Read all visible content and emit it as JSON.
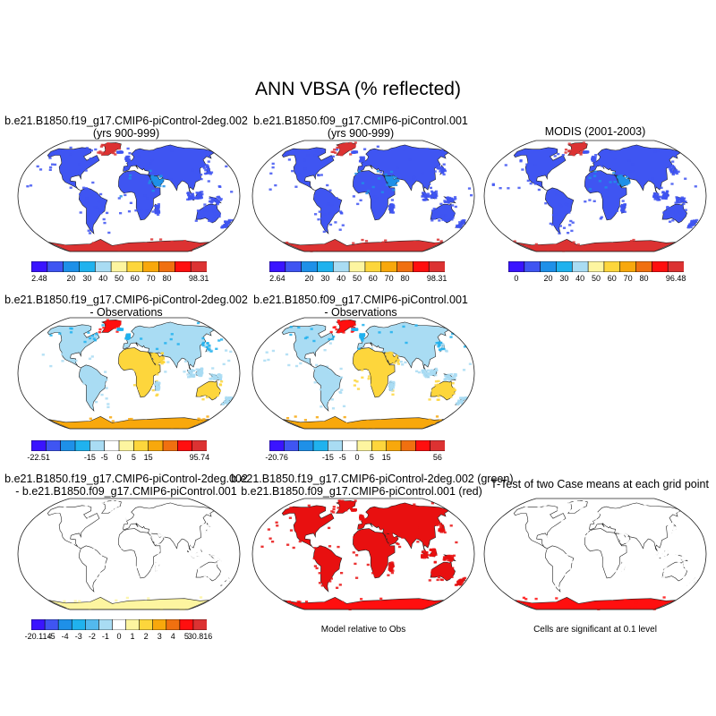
{
  "title": "ANN VBSA (% reflected)",
  "palettes": {
    "abs": [
      "#3a14ff",
      "#3f55f2",
      "#1e90e8",
      "#20b2ee",
      "#a9dcf3",
      "#fdf5a0",
      "#fdd63c",
      "#f8a80c",
      "#f07010",
      "#ff0f0f",
      "#dc3232"
    ],
    "diff": [
      "#3a14ff",
      "#3f55f2",
      "#1e90e8",
      "#20b2ee",
      "#a9dcf3",
      "#ffffff",
      "#fdf5a0",
      "#fdd63c",
      "#f8a80c",
      "#f07010",
      "#ff0f0f",
      "#dc3232"
    ],
    "diff2": [
      "#3a14ff",
      "#3f55f2",
      "#1e90e8",
      "#20b2ee",
      "#53b9ee",
      "#a9dcf3",
      "#ffffff",
      "#fdf5a0",
      "#fdd63c",
      "#f8a80c",
      "#f07010",
      "#ff0f0f",
      "#dc3232"
    ]
  },
  "panels": [
    {
      "id": "case1",
      "title_lines": [
        "b.e21.B1850.f19_g17.CMIP6-piControl-2deg.002",
        "(yrs 900-999)"
      ],
      "style": "abs",
      "colorbar": {
        "palette": "abs",
        "labels": [
          "2.48",
          "20",
          "30",
          "40",
          "50",
          "60",
          "70",
          "80",
          "98.31"
        ]
      }
    },
    {
      "id": "case2",
      "title_lines": [
        "b.e21.B1850.f09_g17.CMIP6-piControl.001",
        "(yrs 900-999)"
      ],
      "style": "abs",
      "colorbar": {
        "palette": "abs",
        "labels": [
          "2.64",
          "20",
          "30",
          "40",
          "50",
          "60",
          "70",
          "80",
          "98.31"
        ]
      }
    },
    {
      "id": "obs",
      "title_lines": [
        "MODIS (2001-2003)"
      ],
      "style": "abs",
      "colorbar": {
        "palette": "abs",
        "labels": [
          "0",
          "20",
          "30",
          "40",
          "50",
          "60",
          "70",
          "80",
          "96.48"
        ]
      }
    },
    {
      "id": "diff1",
      "title_lines": [
        "b.e21.B1850.f19_g17.CMIP6-piControl-2deg.002",
        "- Observations"
      ],
      "style": "diff",
      "colorbar": {
        "palette": "diff",
        "labels": [
          "-22.51",
          "-15",
          "-5",
          "0",
          "5",
          "15",
          "95.74"
        ]
      }
    },
    {
      "id": "diff2",
      "title_lines": [
        "b.e21.B1850.f09_g17.CMIP6-piControl.001",
        "- Observations"
      ],
      "style": "diff",
      "colorbar": {
        "palette": "diff",
        "labels": [
          "-20.76",
          "-15",
          "-5",
          "0",
          "5",
          "15",
          "56"
        ]
      }
    },
    {
      "id": "casediff",
      "title_lines": [
        "b.e21.B1850.f19_g17.CMIP6-piControl-2deg.002",
        "- b.e21.B1850.f09_g17.CMIP6-piControl.001"
      ],
      "style": "casediff",
      "colorbar": {
        "palette": "diff2",
        "labels": [
          "-20.114",
          "-5",
          "-4",
          "-3",
          "-2",
          "-1",
          "0",
          "1",
          "2",
          "3",
          "4",
          "5",
          "30.816"
        ]
      }
    },
    {
      "id": "relobs",
      "title_lines": [
        "b.e21.B1850.f19_g17.CMIP6-piControl-2deg.002 (green)",
        "b.e21.B1850.f09_g17.CMIP6-piControl.001 (red)"
      ],
      "style": "greenred",
      "note": "Model relative to Obs"
    },
    {
      "id": "ttest",
      "title_lines": [
        "T-Test of two Case means at each grid point"
      ],
      "style": "ttest",
      "note": "Cells are significant at 0.1 level"
    }
  ]
}
